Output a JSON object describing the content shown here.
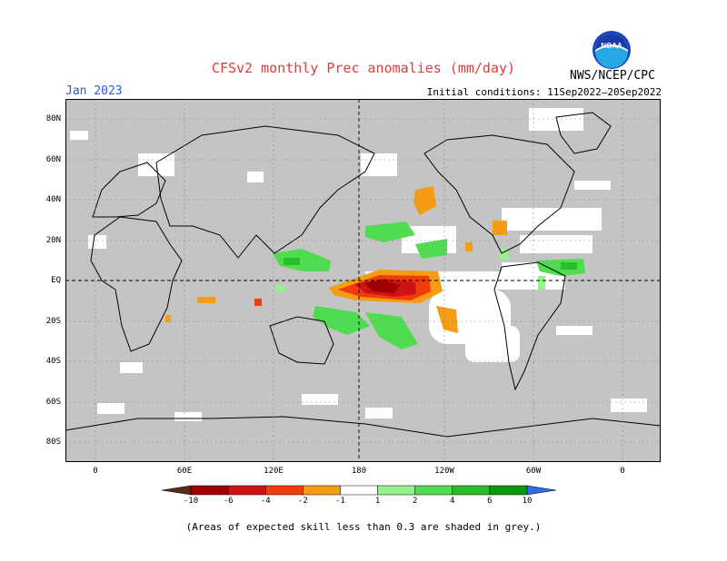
{
  "title": "CFSv2 monthly Prec anomalies (mm/day)",
  "target_month": "Jan 2023",
  "initial_conditions": "Initial conditions: 11Sep2022–20Sep2022",
  "agency": "NWS/NCEP/CPC",
  "logo": {
    "text": "NOAA",
    "icon": "noaa-logo-icon"
  },
  "latitude_labels": [
    "80N",
    "60N",
    "40N",
    "20N",
    "EQ",
    "20S",
    "40S",
    "60S",
    "80S"
  ],
  "longitude_labels": [
    "0",
    "60E",
    "120E",
    "180",
    "120W",
    "60W",
    "0"
  ],
  "colorbar": {
    "labels": [
      "-10",
      "-6",
      "-4",
      "-2",
      "-1",
      "1",
      "2",
      "4",
      "6",
      "10"
    ],
    "colors": [
      "#5a2a1e",
      "#a00000",
      "#cd1414",
      "#f03c0a",
      "#f59b14",
      "#ffffff",
      "#96f08c",
      "#50dc50",
      "#28be28",
      "#0a9b0a",
      "#2f6fe6"
    ]
  },
  "colors": {
    "no_skill_grey": "#c4c4c4"
  },
  "footnote": "(Areas of expected skill less than 0.3 are shaded in grey.)"
}
